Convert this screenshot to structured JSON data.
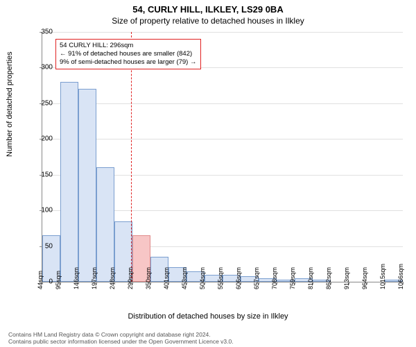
{
  "title": "54, CURLY HILL, ILKLEY, LS29 0BA",
  "subtitle": "Size of property relative to detached houses in Ilkley",
  "ylabel": "Number of detached properties",
  "xlabel": "Distribution of detached houses by size in Ilkley",
  "chart": {
    "type": "histogram",
    "ylim": [
      0,
      350
    ],
    "ytick_step": 50,
    "background_color": "#ffffff",
    "grid_color": "#e0e0e0",
    "bar_fill": "#d9e4f5",
    "bar_border": "#7a9ecf",
    "highlight_fill": "#f7c6c6",
    "highlight_border": "#e08a8a",
    "vline_color": "#e02020",
    "categories": [
      "44sqm",
      "95sqm",
      "146sqm",
      "197sqm",
      "248sqm",
      "299sqm",
      "350sqm",
      "401sqm",
      "453sqm",
      "504sqm",
      "555sqm",
      "606sqm",
      "657sqm",
      "708sqm",
      "759sqm",
      "810sqm",
      "862sqm",
      "913sqm",
      "964sqm",
      "1015sqm",
      "1066sqm"
    ],
    "values": [
      65,
      280,
      270,
      160,
      85,
      65,
      35,
      20,
      15,
      10,
      10,
      8,
      5,
      3,
      5,
      3,
      0,
      0,
      0,
      3
    ],
    "highlight_index": 5,
    "marker_value": 296
  },
  "annotation": {
    "lines": [
      "54 CURLY HILL: 296sqm",
      "← 91% of detached houses are smaller (842)",
      "9% of semi-detached houses are larger (79) →"
    ],
    "border_color": "#e02020"
  },
  "footer": {
    "line1": "Contains HM Land Registry data © Crown copyright and database right 2024.",
    "line2": "Contains public sector information licensed under the Open Government Licence v3.0."
  }
}
